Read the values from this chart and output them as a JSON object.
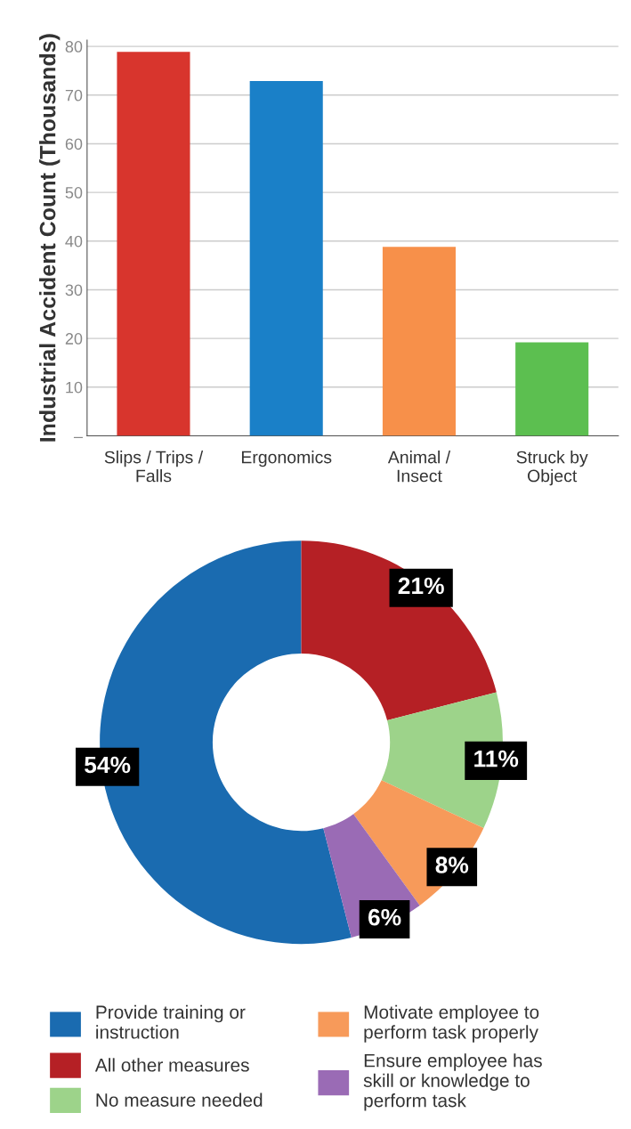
{
  "chart_data": [
    {
      "type": "bar",
      "ylabel": "Industrial Accident Count (Thousands)",
      "categories": [
        "Slips / Trips /\nFalls",
        "Ergonomics",
        "Animal /\nInsect",
        "Struck by\nObject"
      ],
      "values": [
        78.9,
        72.9,
        38.8,
        19.2
      ],
      "colors": [
        "#d8352d",
        "#1a80c8",
        "#f7904a",
        "#5cbf50"
      ],
      "ylim": [
        0,
        81.3
      ],
      "yticks": [
        {
          "value": 0,
          "label": "–"
        },
        10,
        20,
        30,
        40,
        50,
        60,
        70,
        80
      ],
      "grid": "y"
    },
    {
      "type": "donut",
      "categories": [
        "Provide training or\ninstruction",
        "All other measures",
        "No measure needed",
        "Motivate employee to\nperform task properly",
        "Ensure employee has\nskill or knowledge to\nperform task"
      ],
      "values": [
        54,
        21,
        11,
        8,
        6
      ],
      "colors": [
        "#1a6bb0",
        "#b52025",
        "#9dd38a",
        "#f79a5a",
        "#9a6bb5"
      ],
      "value_labels": [
        "54%",
        "21%",
        "11%",
        "8%",
        "6%"
      ],
      "legend": "bottom"
    }
  ]
}
